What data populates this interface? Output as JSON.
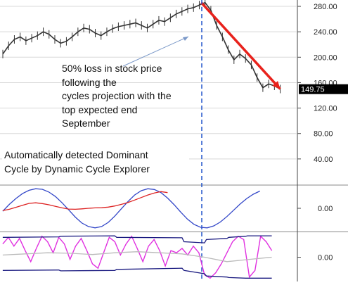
{
  "colors": {
    "price": "#333333",
    "trend_arrow": "#e8221c",
    "cycle_blue": "#3347c8",
    "cycle_red": "#dd2222",
    "osc_magenta": "#e030e0",
    "band_navy": "#1a1a80",
    "osc_grey": "#bbbbbb",
    "marker_line": "#2255cc",
    "grid": "#d8d8d8",
    "price_tag_bg": "#000000",
    "price_tag_fg": "#ffffff"
  },
  "annotations": {
    "loss_note": "50% loss in stock price\nfollowing the\ncycles projection with the\ntop expected end\nSeptember",
    "detector_note": "Automatically detected Dominant\nCycle by Dynamic Cycle Explorer"
  },
  "chart_data": [
    {
      "type": "line",
      "panel": "price",
      "y_ticks": [
        "280.00",
        "240.00",
        "200.00",
        "160.00",
        "120.00",
        "80.00",
        "40.00"
      ],
      "ylim": [
        0,
        290
      ],
      "last_price_label": "149.75",
      "last_price": 149.75,
      "grid": true,
      "series": [
        {
          "x": [
            0,
            3,
            6,
            9,
            12,
            15,
            18,
            21,
            24,
            27,
            30,
            33,
            36,
            39,
            42,
            45,
            48,
            51,
            54,
            57,
            60,
            63,
            66,
            69,
            72,
            75,
            78,
            81,
            84,
            87,
            90,
            93,
            96,
            99,
            102,
            105,
            108,
            111,
            114,
            117,
            120,
            123,
            126,
            129,
            132,
            135,
            138,
            141,
            144
          ],
          "values": [
            205,
            218,
            228,
            232,
            226,
            230,
            234,
            240,
            236,
            228,
            222,
            225,
            232,
            240,
            246,
            244,
            238,
            234,
            240,
            245,
            248,
            250,
            252,
            254,
            250,
            246,
            252,
            258,
            256,
            262,
            268,
            272,
            276,
            278,
            282,
            286,
            274,
            250,
            232,
            212,
            196,
            205,
            198,
            188,
            168,
            152,
            158,
            155,
            150
          ]
        }
      ],
      "trend_arrow": {
        "x_start": 103,
        "y_start": 286,
        "x_end": 144,
        "y_end": 150
      }
    },
    {
      "type": "line",
      "panel": "dominant_cycle",
      "y_ticks": [
        "0.00"
      ],
      "ylim": [
        -1.15,
        1.15
      ],
      "series": [
        {
          "x": [
            0,
            4,
            8,
            12,
            16,
            20,
            24,
            28,
            32,
            36,
            40,
            44,
            48,
            52,
            56,
            60,
            64,
            68,
            72,
            76,
            80,
            84,
            88,
            92,
            96,
            100,
            104,
            108,
            112,
            116,
            120,
            124,
            128,
            132,
            136,
            140,
            144,
            148,
            152,
            156
          ],
          "values": [
            -0.15,
            0.2,
            0.5,
            0.75,
            0.92,
            1.0,
            0.97,
            0.83,
            0.6,
            0.28,
            -0.08,
            -0.45,
            -0.75,
            -0.93,
            -1.0,
            -0.93,
            -0.72,
            -0.4,
            -0.02,
            0.35,
            0.68,
            0.9,
            1.0,
            0.96,
            0.8,
            0.52,
            0.18,
            -0.2,
            -0.55,
            -0.82,
            -0.97,
            -1.0,
            -0.9,
            -0.7,
            -0.42,
            -0.1,
            0.22,
            0.5,
            0.72,
            0.88
          ]
        },
        {
          "x": [
            0,
            4,
            8,
            12,
            16,
            20,
            24,
            28,
            32,
            36,
            40,
            44,
            48,
            52,
            56,
            60,
            64,
            68,
            72,
            76,
            80,
            84,
            88,
            92,
            96,
            100
          ],
          "values": [
            -0.12,
            -0.05,
            0.05,
            0.15,
            0.25,
            0.28,
            0.24,
            0.18,
            0.1,
            0.02,
            -0.04,
            -0.05,
            -0.03,
            0.0,
            0.02,
            0.03,
            0.06,
            0.12,
            0.2,
            0.3,
            0.42,
            0.55,
            0.68,
            0.78,
            0.85,
            0.8
          ]
        }
      ]
    },
    {
      "type": "line",
      "panel": "oscillator",
      "y_ticks": [
        "0.00"
      ],
      "ylim": [
        -1.1,
        1.1
      ],
      "series": [
        {
          "x": [
            0,
            3,
            6,
            9,
            12,
            15,
            18,
            21,
            24,
            27,
            30,
            33,
            36,
            39,
            42,
            45,
            48,
            51,
            54,
            57,
            60,
            63,
            66,
            69,
            72,
            75,
            78,
            81,
            84,
            87,
            90,
            93,
            96,
            99,
            102,
            105,
            108,
            111,
            114,
            117,
            120,
            123,
            126,
            129,
            132,
            135,
            138,
            141,
            144
          ],
          "values": [
            0.6,
            0.9,
            0.5,
            0.85,
            0.3,
            -0.2,
            0.4,
            0.95,
            0.7,
            0.2,
            0.9,
            0.6,
            -0.1,
            0.5,
            0.85,
            0.3,
            -0.3,
            -0.5,
            0.2,
            0.9,
            0.7,
            0.1,
            0.6,
            0.95,
            0.4,
            -0.2,
            0.5,
            0.8,
            0.3,
            -0.4,
            0.3,
            0.2,
            0.4,
            0.1,
            0.5,
            0.2,
            -0.8,
            -0.95,
            -0.7,
            -0.3,
            0.2,
            0.7,
            0.95,
            0.8,
            -0.9,
            -0.6,
            0.95,
            0.7,
            0.3
          ]
        },
        {
          "x": [
            0,
            30,
            31,
            60,
            61,
            96,
            97,
            108,
            109,
            120,
            121,
            130,
            131,
            144
          ],
          "values": [
            0.9,
            0.92,
            0.95,
            0.97,
            0.9,
            0.88,
            0.7,
            0.65,
            0.8,
            0.85,
            0.9,
            0.95,
            0.97,
            0.97
          ]
        },
        {
          "x": [
            0,
            30,
            31,
            60,
            61,
            96,
            97,
            108,
            109,
            120,
            121,
            130,
            131,
            144
          ],
          "values": [
            -0.6,
            -0.58,
            -0.62,
            -0.6,
            -0.55,
            -0.5,
            -0.6,
            -0.75,
            -0.85,
            -0.9,
            -0.92,
            -0.95,
            -0.95,
            -0.95
          ]
        },
        {
          "x": [
            0,
            12,
            24,
            36,
            48,
            60,
            72,
            84,
            96,
            108,
            120,
            132,
            144
          ],
          "values": [
            0.1,
            0.15,
            0.2,
            0.18,
            0.12,
            0.2,
            0.25,
            0.2,
            0.15,
            0.0,
            -0.2,
            -0.1,
            0.0
          ]
        }
      ]
    }
  ]
}
